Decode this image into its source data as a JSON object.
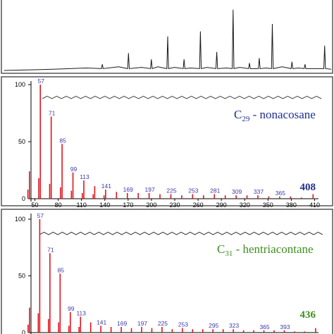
{
  "colors": {
    "chromatogram": "#1a1a1a",
    "spectrum": "#e0141c",
    "peak_label": "#3a3aa8",
    "nonacosane": "#1f2f8f",
    "hentriacontane": "#3f8f1f"
  },
  "chart_data": [
    {
      "type": "line",
      "panel": "chromatogram",
      "x": [
        0,
        8,
        15,
        20,
        25,
        30,
        35,
        38,
        42,
        45,
        47,
        50,
        52,
        55,
        57,
        60,
        62,
        65,
        68,
        70,
        72,
        75,
        78,
        80,
        82,
        85,
        88,
        90,
        92,
        95,
        98,
        100
      ],
      "y": [
        0,
        1,
        2,
        3,
        4,
        10,
        6,
        28,
        5,
        18,
        6,
        55,
        5,
        18,
        4,
        63,
        5,
        30,
        4,
        98,
        5,
        12,
        20,
        4,
        75,
        6,
        14,
        4,
        10,
        3,
        40,
        2
      ],
      "xlim": [
        0,
        100
      ],
      "ylim": [
        0,
        100
      ]
    },
    {
      "type": "bar",
      "panel": "nonacosane",
      "compound": {
        "prefix": "C",
        "subscript": "29",
        "name": " - nonacosane"
      },
      "molecular_ion": "408",
      "xlim": [
        45,
        415
      ],
      "ylim": [
        0,
        105
      ],
      "xticks": [
        "50",
        "80",
        "110",
        "140",
        "170",
        "200",
        "230",
        "260",
        "290",
        "320",
        "350",
        "380",
        "410"
      ],
      "yticks": [
        "0",
        "50",
        "100"
      ],
      "x": [
        41,
        43,
        55,
        57,
        69,
        71,
        83,
        85,
        97,
        99,
        111,
        113,
        125,
        127,
        139,
        141,
        155,
        169,
        183,
        197,
        211,
        225,
        239,
        253,
        267,
        281,
        295,
        309,
        323,
        337,
        351,
        365,
        379,
        393,
        408
      ],
      "values": [
        8,
        24,
        18,
        100,
        13,
        72,
        10,
        48,
        7,
        23,
        5,
        16,
        4,
        11,
        3,
        8,
        6,
        5,
        5,
        5,
        4,
        4,
        3,
        4,
        3,
        4,
        3,
        3,
        3,
        3,
        2,
        2,
        2,
        1,
        4
      ],
      "labels": [
        {
          "mz": 57,
          "text": "57"
        },
        {
          "mz": 71,
          "text": "71"
        },
        {
          "mz": 85,
          "text": "85"
        },
        {
          "mz": 99,
          "text": "99"
        },
        {
          "mz": 113,
          "text": "113"
        },
        {
          "mz": 141,
          "text": "141"
        },
        {
          "mz": 169,
          "text": "169"
        },
        {
          "mz": 197,
          "text": "197"
        },
        {
          "mz": 225,
          "text": "225"
        },
        {
          "mz": 253,
          "text": "253"
        },
        {
          "mz": 281,
          "text": "281"
        },
        {
          "mz": 309,
          "text": "309"
        },
        {
          "mz": 337,
          "text": "337"
        },
        {
          "mz": 365,
          "text": "365"
        }
      ]
    },
    {
      "type": "bar",
      "panel": "hentriacontane",
      "compound": {
        "prefix": "C",
        "subscript": "31",
        "name": " - hentriacontane"
      },
      "molecular_ion": "436",
      "xlim": [
        45,
        440
      ],
      "ylim": [
        0,
        105
      ],
      "yticks": [
        "0",
        "50",
        "100"
      ],
      "x": [
        41,
        43,
        55,
        57,
        69,
        71,
        83,
        85,
        97,
        99,
        111,
        113,
        127,
        141,
        155,
        169,
        183,
        197,
        211,
        225,
        239,
        253,
        267,
        281,
        295,
        309,
        323,
        337,
        351,
        365,
        379,
        393,
        407,
        421,
        436
      ],
      "values": [
        7,
        22,
        17,
        100,
        12,
        70,
        9,
        52,
        6,
        18,
        5,
        14,
        9,
        6,
        5,
        5,
        4,
        5,
        4,
        5,
        3,
        4,
        3,
        3,
        3,
        3,
        3,
        2,
        2,
        2,
        2,
        2,
        1,
        1,
        4
      ],
      "labels": [
        {
          "mz": 57,
          "text": "57"
        },
        {
          "mz": 71,
          "text": "71"
        },
        {
          "mz": 85,
          "text": "85"
        },
        {
          "mz": 99,
          "text": "99"
        },
        {
          "mz": 113,
          "text": "113"
        },
        {
          "mz": 141,
          "text": "141"
        },
        {
          "mz": 169,
          "text": "169"
        },
        {
          "mz": 197,
          "text": "197"
        },
        {
          "mz": 225,
          "text": "225"
        },
        {
          "mz": 253,
          "text": "253"
        },
        {
          "mz": 295,
          "text": "295"
        },
        {
          "mz": 323,
          "text": "323"
        },
        {
          "mz": 365,
          "text": "365"
        },
        {
          "mz": 393,
          "text": "393"
        }
      ]
    }
  ]
}
